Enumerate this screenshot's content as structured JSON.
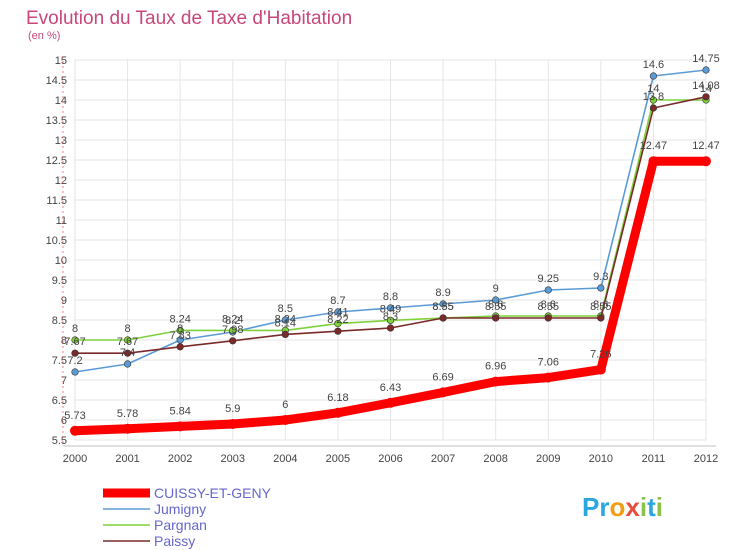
{
  "chart_data": {
    "type": "line",
    "title": "Evolution du Taux de Taxe d'Habitation",
    "subtitle": "(en %)",
    "x": [
      "2000",
      "2001",
      "2002",
      "2003",
      "2004",
      "2005",
      "2006",
      "2007",
      "2008",
      "2009",
      "2010",
      "2011",
      "2012"
    ],
    "ylim": [
      5.5,
      15
    ],
    "yticks": [
      "5.5",
      "6",
      "6.5",
      "7",
      "7.5",
      "8",
      "8.5",
      "9",
      "9.5",
      "10",
      "10.5",
      "11",
      "11.5",
      "12",
      "12.5",
      "13",
      "13.5",
      "14",
      "14.5",
      "15"
    ],
    "grid": true,
    "legend_position": "bottom-left",
    "series": [
      {
        "name": "CUISSY-ET-GENY",
        "color": "#ff0000",
        "values": [
          5.73,
          5.78,
          5.84,
          5.9,
          6,
          6.18,
          6.43,
          6.69,
          6.96,
          7.06,
          7.26,
          12.47,
          12.47
        ],
        "labels": [
          "5.73",
          "5.78",
          "5.84",
          "5.9",
          "6",
          "6.18",
          "6.43",
          "6.69",
          "6.96",
          "7.06",
          "7.26",
          "12.47",
          "12.47"
        ]
      },
      {
        "name": "Jumigny",
        "color": "#5b9bd5",
        "values": [
          7.2,
          7.4,
          8.0,
          8.2,
          8.5,
          8.7,
          8.8,
          8.9,
          9,
          9.25,
          9.3,
          14.6,
          14.75
        ],
        "labels": [
          "7.2",
          "7.4",
          "8",
          "8.2",
          "8.5",
          "8.7",
          "8.8",
          "8.9",
          "9",
          "9.25",
          "9.3",
          "14.6",
          "14.75"
        ]
      },
      {
        "name": "Pargnan",
        "color": "#7fd13b",
        "values": [
          8,
          8,
          8.24,
          8.24,
          8.24,
          8.41,
          8.49,
          8.55,
          8.6,
          8.6,
          8.6,
          14,
          14
        ],
        "labels": [
          "8",
          "8",
          "8.24",
          "8.24",
          "8.24",
          "8.41",
          "8.49",
          "8.55",
          "8.6",
          "8.6",
          "8.6",
          "14",
          "14"
        ]
      },
      {
        "name": "Paissy",
        "color": "#7b2a2a",
        "values": [
          7.67,
          7.67,
          7.83,
          7.98,
          8.14,
          8.22,
          8.3,
          8.55,
          8.55,
          8.55,
          8.55,
          13.8,
          14.08
        ],
        "labels": [
          "7.67",
          "7.67",
          "7.83",
          "7.98",
          "8.14",
          "8.22",
          "8.3",
          "8.55",
          "8.55",
          "8.55",
          "8.55",
          "13.8",
          "14.08"
        ]
      }
    ]
  },
  "logo": {
    "text": "Proxiti",
    "letters": [
      {
        "ch": "P",
        "color": "#2aa7e0"
      },
      {
        "ch": "r",
        "color": "#2aa7e0"
      },
      {
        "ch": "o",
        "color": "#f39c12"
      },
      {
        "ch": "x",
        "color": "#e74c3c"
      },
      {
        "ch": "i",
        "color": "#8bc34a"
      },
      {
        "ch": "t",
        "color": "#2aa7e0"
      },
      {
        "ch": "i",
        "color": "#8bc34a"
      }
    ]
  }
}
